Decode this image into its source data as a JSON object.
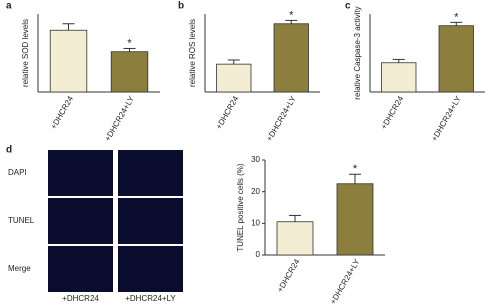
{
  "chart_data": [
    {
      "type": "bar",
      "panel_label": "a",
      "ylabel": "relative SOD levels",
      "categories": [
        "+DHCR24",
        "+DHCR24+LY"
      ],
      "values": [
        0.95,
        0.62
      ],
      "errors": [
        0.1,
        0.05
      ],
      "colors": [
        "#f3edd3",
        "#8c7e3c"
      ],
      "annotation": "*",
      "ylim": [
        0,
        1.2
      ]
    },
    {
      "type": "bar",
      "panel_label": "b",
      "ylabel": "relative ROS levels",
      "categories": [
        "+DHCR24",
        "+DHCR24+LY"
      ],
      "values": [
        1.0,
        2.45
      ],
      "errors": [
        0.15,
        0.12
      ],
      "colors": [
        "#f3edd3",
        "#8c7e3c"
      ],
      "annotation": "*",
      "ylim": [
        0,
        2.8
      ]
    },
    {
      "type": "bar",
      "panel_label": "c",
      "ylabel": "relative Caspase-3 activity",
      "categories": [
        "+DHCR24",
        "+DHCR24+LY"
      ],
      "values": [
        1.05,
        2.38
      ],
      "errors": [
        0.12,
        0.12
      ],
      "colors": [
        "#f3edd3",
        "#8c7e3c"
      ],
      "annotation": "*",
      "ylim": [
        0,
        2.8
      ]
    },
    {
      "type": "bar",
      "panel_label": "d",
      "ylabel": "TUNEL positive cells (%)",
      "categories": [
        "+DHCR24",
        "+DHCR24+LY"
      ],
      "values": [
        10.5,
        22.5
      ],
      "errors": [
        2,
        3
      ],
      "colors": [
        "#f3edd3",
        "#8c7e3c"
      ],
      "annotation": "*",
      "ylim": [
        0,
        30
      ],
      "yticks": [
        0,
        10,
        20,
        30
      ]
    }
  ],
  "microscopy": {
    "row_labels": [
      "DAPI",
      "TUNEL",
      "Merge"
    ],
    "column_labels": [
      "+DHCR24",
      "+DHCR24+LY"
    ]
  }
}
